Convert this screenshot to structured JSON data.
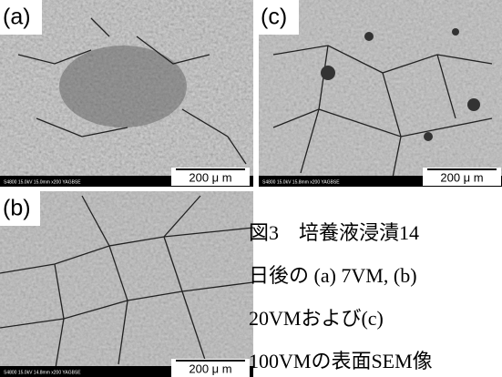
{
  "panels": [
    {
      "label": "(a)",
      "info": "S4800 15.0kV 15.0mm x200 YAGBSE",
      "scale": "200 μ m"
    },
    {
      "label": "(c)",
      "info": "S4800 15.0kV 15.8mm x200 YAGBSE",
      "scale": "200 μ m"
    },
    {
      "label": "(b)",
      "info": "S4800 15.0kV 14.8mm x200 YAGBSE",
      "scale": "200 μ m"
    }
  ],
  "caption": [
    "図3　培養液浸漬14",
    "日後の (a) 7VM, (b)",
    "20VMおよび(c)",
    "100VMの表面SEM像"
  ]
}
